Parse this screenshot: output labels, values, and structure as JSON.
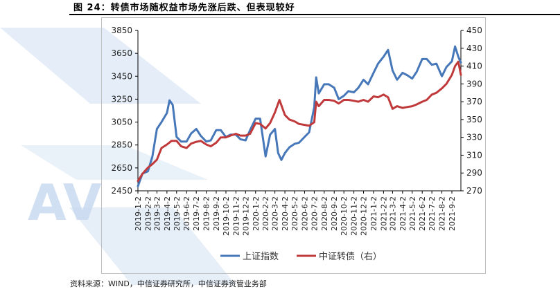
{
  "title": "图 24：转债市场随权益市场先涨后跌、但表现较好",
  "source": "资料来源：WIND，中信证券研究所，中信证券资管业务部",
  "watermark_text": "AV",
  "chart_data": {
    "type": "line",
    "title": "图 24：转债市场随权益市场先涨后跌、但表现较好",
    "xlabel": "",
    "ylabel_left": "",
    "ylabel_right": "",
    "ylim_left": [
      2450,
      3850
    ],
    "yticks_left": [
      2450,
      2650,
      2850,
      3050,
      3250,
      3450,
      3650,
      3850
    ],
    "ylim_right": [
      270,
      450
    ],
    "yticks_right": [
      270,
      290,
      310,
      330,
      350,
      370,
      390,
      410,
      430,
      450
    ],
    "grid": false,
    "legend_position": "bottom",
    "x_tick_labels": [
      "2019-1-2",
      "2019-2-2",
      "2019-3-2",
      "2019-4-2",
      "2019-5-2",
      "2019-6-2",
      "2019-7-2",
      "2019-8-2",
      "2019-9-2",
      "2019-10-2",
      "2019-11-2",
      "2019-12-2",
      "2020-1-2",
      "2020-2-2",
      "2020-3-2",
      "2020-4-2",
      "2020-5-2",
      "2020-6-2",
      "2020-7-2",
      "2020-8-2",
      "2020-9-2",
      "2020-10-2",
      "2020-11-2",
      "2020-12-2",
      "2021-1-2",
      "2021-2-2",
      "2021-3-2",
      "2021-4-2",
      "2021-5-2",
      "2021-6-2",
      "2021-7-2",
      "2021-8-2",
      "2021-9-2"
    ],
    "series": [
      {
        "name": "上证指数",
        "axis": "left",
        "color": "#4677b9",
        "x": [
          "2019-1-2",
          "2019-1-16",
          "2019-2-2",
          "2019-2-16",
          "2019-3-2",
          "2019-3-16",
          "2019-4-2",
          "2019-4-10",
          "2019-4-20",
          "2019-5-2",
          "2019-5-16",
          "2019-6-2",
          "2019-6-16",
          "2019-7-2",
          "2019-7-16",
          "2019-8-2",
          "2019-8-16",
          "2019-9-2",
          "2019-9-16",
          "2019-10-2",
          "2019-10-16",
          "2019-11-2",
          "2019-11-16",
          "2019-12-2",
          "2019-12-16",
          "2020-1-2",
          "2020-1-16",
          "2020-2-2",
          "2020-2-16",
          "2020-3-2",
          "2020-3-12",
          "2020-3-22",
          "2020-4-2",
          "2020-4-16",
          "2020-5-2",
          "2020-5-16",
          "2020-6-2",
          "2020-6-16",
          "2020-7-2",
          "2020-7-8",
          "2020-7-16",
          "2020-8-2",
          "2020-8-16",
          "2020-9-2",
          "2020-9-16",
          "2020-10-2",
          "2020-10-16",
          "2020-11-2",
          "2020-11-16",
          "2020-12-2",
          "2020-12-16",
          "2021-1-2",
          "2021-1-16",
          "2021-2-2",
          "2021-2-16",
          "2021-3-2",
          "2021-3-16",
          "2021-4-2",
          "2021-4-16",
          "2021-5-2",
          "2021-5-16",
          "2021-6-2",
          "2021-6-16",
          "2021-7-2",
          "2021-7-16",
          "2021-8-2",
          "2021-8-16",
          "2021-9-2",
          "2021-9-12",
          "2021-9-22",
          "2021-9-30"
        ],
        "values": [
          2490,
          2600,
          2620,
          2750,
          2990,
          3050,
          3130,
          3240,
          3200,
          2920,
          2880,
          2880,
          2950,
          2990,
          2930,
          2880,
          2890,
          2980,
          2980,
          2920,
          2940,
          2940,
          2900,
          2890,
          2980,
          3080,
          3080,
          2750,
          2940,
          2990,
          2780,
          2720,
          2780,
          2830,
          2860,
          2870,
          2920,
          2960,
          3180,
          3440,
          3300,
          3380,
          3380,
          3350,
          3250,
          3280,
          3320,
          3310,
          3350,
          3420,
          3380,
          3480,
          3560,
          3620,
          3680,
          3500,
          3420,
          3480,
          3460,
          3430,
          3490,
          3600,
          3600,
          3550,
          3560,
          3450,
          3530,
          3580,
          3710,
          3620,
          3570
        ]
      },
      {
        "name": "中证转债（右）",
        "axis": "right",
        "color": "#c0393b",
        "x": [
          "2019-1-2",
          "2019-1-16",
          "2019-2-2",
          "2019-2-16",
          "2019-3-2",
          "2019-3-16",
          "2019-4-2",
          "2019-4-16",
          "2019-5-2",
          "2019-5-16",
          "2019-6-2",
          "2019-6-16",
          "2019-7-2",
          "2019-7-16",
          "2019-8-2",
          "2019-8-16",
          "2019-9-2",
          "2019-9-16",
          "2019-10-2",
          "2019-10-16",
          "2019-11-2",
          "2019-11-16",
          "2019-12-2",
          "2019-12-16",
          "2020-1-2",
          "2020-1-16",
          "2020-2-2",
          "2020-2-16",
          "2020-3-2",
          "2020-3-16",
          "2020-4-2",
          "2020-4-16",
          "2020-5-2",
          "2020-5-16",
          "2020-6-2",
          "2020-6-16",
          "2020-7-2",
          "2020-7-8",
          "2020-7-16",
          "2020-8-2",
          "2020-8-16",
          "2020-9-2",
          "2020-9-16",
          "2020-10-2",
          "2020-10-16",
          "2020-11-2",
          "2020-11-16",
          "2020-12-2",
          "2020-12-16",
          "2021-1-2",
          "2021-1-16",
          "2021-2-2",
          "2021-2-16",
          "2021-3-2",
          "2021-3-16",
          "2021-4-2",
          "2021-4-16",
          "2021-5-2",
          "2021-5-16",
          "2021-6-2",
          "2021-6-16",
          "2021-7-2",
          "2021-7-16",
          "2021-8-2",
          "2021-8-16",
          "2021-9-2",
          "2021-9-12",
          "2021-9-22",
          "2021-9-30"
        ],
        "values": [
          281,
          289,
          296,
          300,
          305,
          318,
          322,
          326,
          326,
          320,
          318,
          323,
          325,
          326,
          322,
          320,
          324,
          330,
          330,
          332,
          334,
          332,
          332,
          334,
          346,
          345,
          340,
          346,
          358,
          372,
          355,
          350,
          348,
          345,
          344,
          343,
          347,
          370,
          365,
          372,
          372,
          371,
          368,
          372,
          372,
          371,
          370,
          372,
          370,
          376,
          375,
          378,
          375,
          362,
          365,
          363,
          364,
          365,
          367,
          370,
          372,
          378,
          380,
          385,
          390,
          400,
          410,
          415,
          400
        ]
      }
    ]
  }
}
